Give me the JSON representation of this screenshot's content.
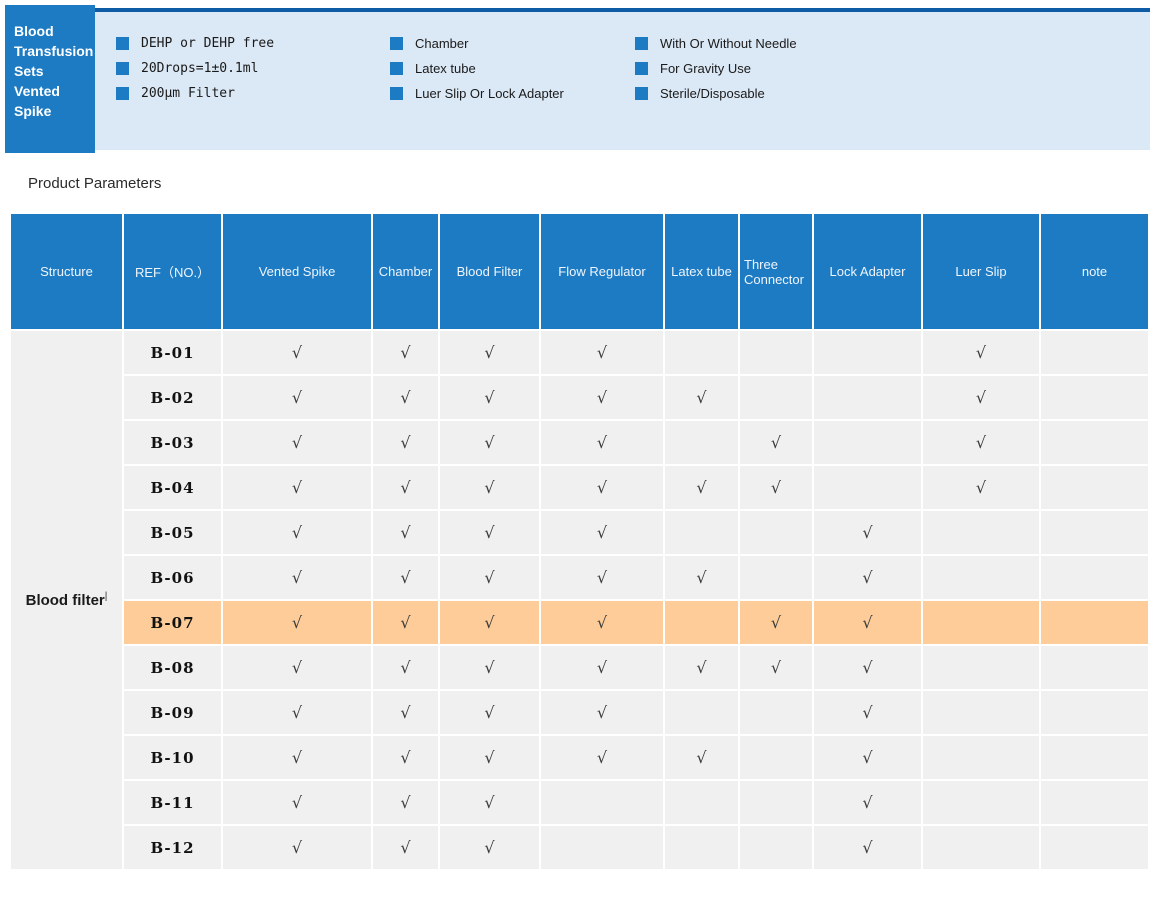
{
  "banner": {
    "title_lines": [
      "Blood",
      "Transfusion",
      "Sets",
      "Vented",
      "Spike"
    ],
    "features_col1": [
      "DEHP or DEHP free",
      "20Drops=1±0.1ml",
      "200μm Filter"
    ],
    "features_col2": [
      "Chamber",
      "Latex tube",
      "Luer Slip Or Lock Adapter"
    ],
    "features_col3": [
      "With Or Without Needle",
      "For Gravity Use",
      "Sterile/Disposable"
    ]
  },
  "section_title": "Product Parameters",
  "table": {
    "columns": [
      "Structure",
      "REF（NO.）",
      "Vented Spike",
      "Chamber",
      "Blood Filter",
      "Flow Regulator",
      "Latex tube",
      "Three Connector",
      "Lock Adapter",
      "Luer Slip",
      "note"
    ],
    "structure_label": "Blood filter",
    "structure_mark": "|",
    "check_glyph": "√",
    "rows": [
      {
        "ref": "B-01",
        "checks": [
          1,
          1,
          1,
          1,
          0,
          0,
          0,
          1,
          0
        ],
        "highlight": false
      },
      {
        "ref": "B-02",
        "checks": [
          1,
          1,
          1,
          1,
          1,
          0,
          0,
          1,
          0
        ],
        "highlight": false
      },
      {
        "ref": "B-03",
        "checks": [
          1,
          1,
          1,
          1,
          0,
          1,
          0,
          1,
          0
        ],
        "highlight": false
      },
      {
        "ref": "B-04",
        "checks": [
          1,
          1,
          1,
          1,
          1,
          1,
          0,
          1,
          0
        ],
        "highlight": false
      },
      {
        "ref": "B-05",
        "checks": [
          1,
          1,
          1,
          1,
          0,
          0,
          1,
          0,
          0
        ],
        "highlight": false
      },
      {
        "ref": "B-06",
        "checks": [
          1,
          1,
          1,
          1,
          1,
          0,
          1,
          0,
          0
        ],
        "highlight": false
      },
      {
        "ref": "B-07",
        "checks": [
          1,
          1,
          1,
          1,
          0,
          1,
          1,
          0,
          0
        ],
        "highlight": true
      },
      {
        "ref": "B-08",
        "checks": [
          1,
          1,
          1,
          1,
          1,
          1,
          1,
          0,
          0
        ],
        "highlight": false
      },
      {
        "ref": "B-09",
        "checks": [
          1,
          1,
          1,
          1,
          0,
          0,
          1,
          0,
          0
        ],
        "highlight": false
      },
      {
        "ref": "B-10",
        "checks": [
          1,
          1,
          1,
          1,
          1,
          0,
          1,
          0,
          0
        ],
        "highlight": false
      },
      {
        "ref": "B-11",
        "checks": [
          1,
          1,
          1,
          0,
          0,
          0,
          1,
          0,
          0
        ],
        "highlight": false
      },
      {
        "ref": "B-12",
        "checks": [
          1,
          1,
          1,
          0,
          0,
          0,
          1,
          0,
          0
        ],
        "highlight": false
      }
    ]
  },
  "colors": {
    "brand_blue": "#1d7bc4",
    "dark_blue_line": "#0e5ba6",
    "light_blue_strip": "#dbe8f5",
    "cell_gray": "#f0f0f0",
    "highlight_orange": "#fdcc98"
  }
}
